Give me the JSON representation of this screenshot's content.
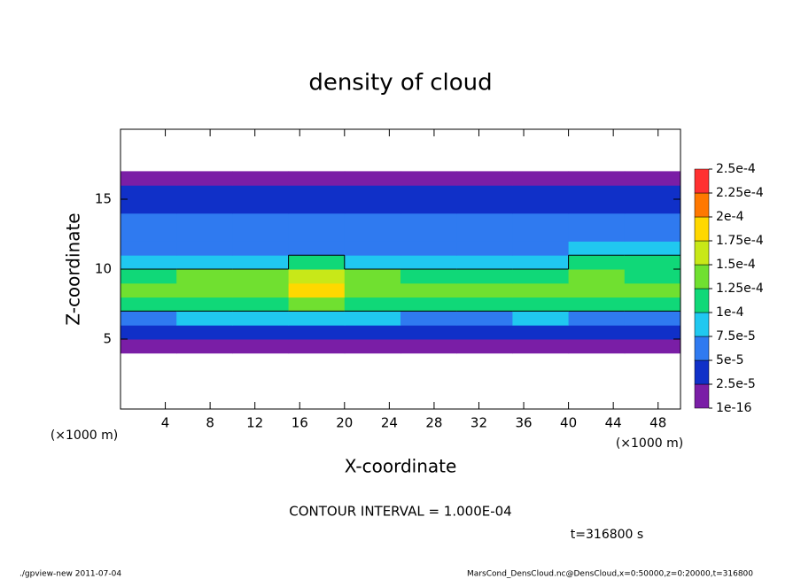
{
  "chart_data": {
    "type": "heatmap",
    "title": "density of cloud",
    "x_label": "X-coordinate",
    "y_label": "Z-coordinate",
    "x_unit_left": "(×1000 m)",
    "x_unit_right": "(×1000 m)",
    "contour_interval": {
      "value": 0.0001,
      "label": "CONTOUR INTERVAL = 1.000E-04"
    },
    "time_label": "t=316800 s",
    "footer_left": "./gpview-new   2011-07-04",
    "footer_right": "MarsCond_DensCloud.nc@DensCloud,x=0:50000,z=0:20000,t=316800",
    "xlim": [
      0,
      50
    ],
    "ylim": [
      0,
      20
    ],
    "xticks": [
      4,
      8,
      12,
      16,
      20,
      24,
      28,
      32,
      36,
      40,
      44,
      48
    ],
    "yticks": [
      5,
      10,
      15
    ],
    "x_edges": [
      0,
      5,
      10,
      15,
      20,
      25,
      30,
      35,
      40,
      45,
      50
    ],
    "y_edges": [
      4,
      5,
      6,
      7,
      8,
      9,
      10,
      11,
      12,
      13,
      14,
      15,
      16,
      17
    ],
    "z": [
      [
        5e-06,
        5e-06,
        5e-06,
        5e-06,
        5e-06,
        5e-06,
        5e-06,
        5e-06,
        5e-06,
        5e-06
      ],
      [
        3e-05,
        3e-05,
        3e-05,
        3e-05,
        3e-05,
        3e-05,
        3e-05,
        3e-05,
        3e-05,
        3e-05
      ],
      [
        7e-05,
        8e-05,
        8e-05,
        9e-05,
        8e-05,
        7e-05,
        7e-05,
        8e-05,
        7e-05,
        7e-05
      ],
      [
        0.00011,
        0.000115,
        0.00012,
        0.000125,
        0.000115,
        0.00011,
        0.00011,
        0.000115,
        0.00011,
        0.000105
      ],
      [
        0.00013,
        0.000135,
        0.000145,
        0.000175,
        0.00014,
        0.00013,
        0.00013,
        0.00014,
        0.00013,
        0.000125
      ],
      [
        0.00012,
        0.000125,
        0.000135,
        0.00016,
        0.00013,
        0.000115,
        0.000115,
        0.00012,
        0.000125,
        0.00012
      ],
      [
        9e-05,
        9e-05,
        9e-05,
        0.000105,
        9e-05,
        8e-05,
        8e-05,
        9e-05,
        0.000105,
        0.000105
      ],
      [
        7e-05,
        6.5e-05,
        6e-05,
        6.5e-05,
        6e-05,
        6e-05,
        6e-05,
        7e-05,
        8e-05,
        8e-05
      ],
      [
        6e-05,
        5.5e-05,
        5e-05,
        5e-05,
        5e-05,
        5e-05,
        5.5e-05,
        6e-05,
        6.5e-05,
        6.5e-05
      ],
      [
        5e-05,
        5e-05,
        5e-05,
        5e-05,
        5e-05,
        5e-05,
        5e-05,
        5.5e-05,
        5.5e-05,
        5.5e-05
      ],
      [
        4.5e-05,
        4.5e-05,
        4.5e-05,
        4.5e-05,
        4.5e-05,
        4.5e-05,
        4.5e-05,
        4.5e-05,
        4.5e-05,
        4.5e-05
      ],
      [
        3e-05,
        3e-05,
        3e-05,
        3e-05,
        3e-05,
        3e-05,
        3e-05,
        3e-05,
        3e-05,
        3e-05
      ],
      [
        5e-06,
        5e-06,
        5e-06,
        5e-06,
        5e-06,
        5e-06,
        5e-06,
        5e-06,
        5e-06,
        5e-06
      ]
    ],
    "colorbar_ticks": [
      {
        "value": 1e-16,
        "label": "1e-16"
      },
      {
        "value": 2.5e-05,
        "label": "2.5e-5"
      },
      {
        "value": 5e-05,
        "label": "5e-5"
      },
      {
        "value": 7.5e-05,
        "label": "7.5e-5"
      },
      {
        "value": 0.0001,
        "label": "1e-4"
      },
      {
        "value": 0.000125,
        "label": "1.25e-4"
      },
      {
        "value": 0.00015,
        "label": "1.5e-4"
      },
      {
        "value": 0.000175,
        "label": "1.75e-4"
      },
      {
        "value": 0.0002,
        "label": "2e-4"
      },
      {
        "value": 0.000225,
        "label": "2.25e-4"
      },
      {
        "value": 0.00025,
        "label": "2.5e-4"
      }
    ],
    "colors": [
      "#7a1ea6",
      "#1030c8",
      "#2f7af0",
      "#20c8f0",
      "#10d878",
      "#70e030",
      "#c8e818",
      "#ffd800",
      "#ff7800",
      "#ff3030"
    ]
  }
}
